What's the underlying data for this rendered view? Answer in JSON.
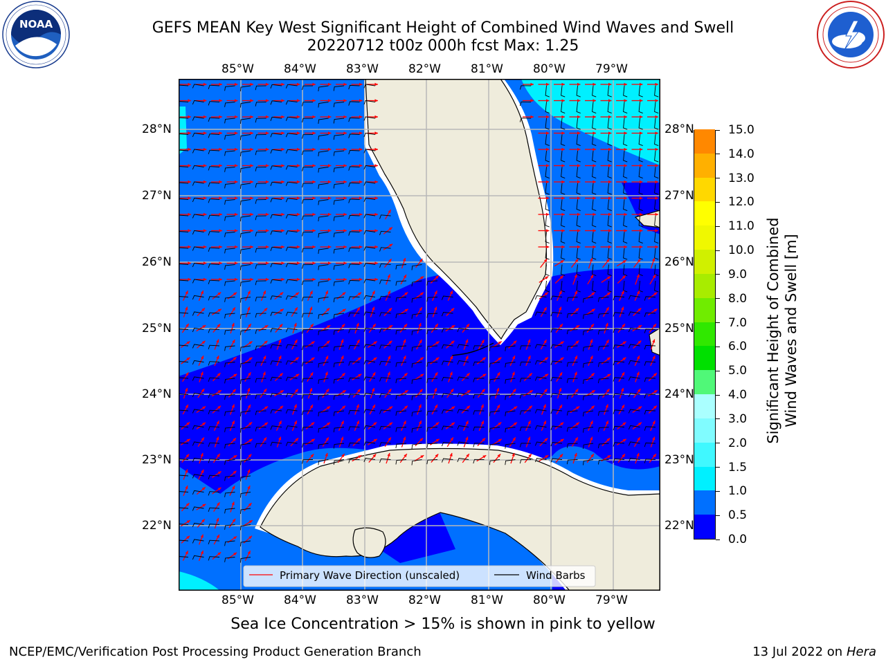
{
  "header": {
    "title_line1": "GEFS MEAN Key West Significant Height of Combined Wind Waves and Swell",
    "title_line2": "20220712 t00z 000h fcst   Max: 1.25"
  },
  "logos": {
    "left": {
      "name": "noaa-logo",
      "text": "NOAA",
      "ring_text": "NATIONAL OCEANIC AND ATMOSPHERIC ADMINISTRATION · U.S. DEPARTMENT OF COMMERCE"
    },
    "right": {
      "name": "nws-logo",
      "ring_text": "NATIONAL WEATHER SERVICE"
    }
  },
  "map": {
    "lon_labels": [
      "85°W",
      "84°W",
      "83°W",
      "82°W",
      "81°W",
      "80°W",
      "79°W"
    ],
    "lat_labels": [
      "28°N",
      "27°N",
      "26°N",
      "25°N",
      "24°N",
      "23°N",
      "22°N"
    ],
    "legend": {
      "wave_direction": "Primary Wave Direction (unscaled)",
      "wind_barbs": "Wind Barbs"
    },
    "colors": {
      "land": "#efecdc",
      "coast": "#000000",
      "grid": "#b8b8b8",
      "wave_arrow": "#ff0000",
      "wind_barb": "#000000"
    }
  },
  "colorbar": {
    "label_line1": "Significant Height of Combined",
    "label_line2": "Wind Waves and Swell [m]",
    "ticks": [
      "15.0",
      "14.0",
      "13.0",
      "12.0",
      "11.0",
      "10.0",
      "9.0",
      "8.0",
      "7.0",
      "6.0",
      "5.0",
      "4.0",
      "3.0",
      "2.0",
      "1.5",
      "1.0",
      "0.5",
      "0.0"
    ],
    "colors_bottom_to_top": [
      "#0000ff",
      "#0070ff",
      "#00f0ff",
      "#40f8ff",
      "#80fcff",
      "#aaffff",
      "#50f878",
      "#00e000",
      "#30e800",
      "#70ec00",
      "#a8ec00",
      "#d0f000",
      "#f0f800",
      "#ffff00",
      "#ffd800",
      "#ffb000",
      "#ff8800",
      "#ff5000",
      "#ff2000",
      "#ff0000"
    ]
  },
  "footer": {
    "sea_ice_note": "Sea Ice Concentration > 15% is shown in pink to yellow",
    "credit": "NCEP/EMC/Verification Post Processing Product Generation Branch",
    "date": "13 Jul 2022 on ",
    "host": "Hera"
  }
}
